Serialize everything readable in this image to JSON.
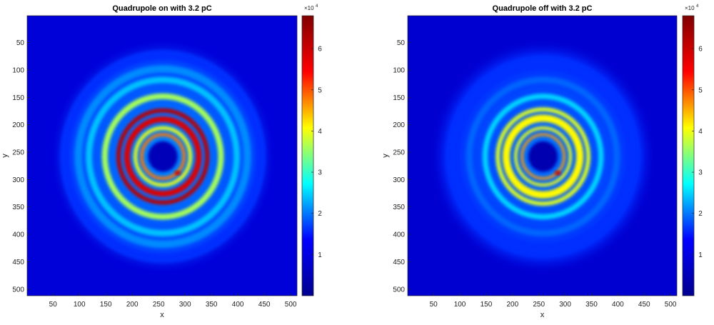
{
  "chart_data": [
    {
      "type": "heatmap",
      "title": "Quadrupole on with 3.2 pC",
      "xlabel": "x",
      "ylabel": "y",
      "xlim": [
        1,
        512
      ],
      "ylim": [
        1,
        512
      ],
      "x_ticks": [
        "50",
        "100",
        "150",
        "200",
        "250",
        "300",
        "350",
        "400",
        "450",
        "500"
      ],
      "y_ticks": [
        "50",
        "100",
        "150",
        "200",
        "250",
        "300",
        "350",
        "400",
        "450",
        "500"
      ],
      "colorbar": {
        "range": [
          0,
          68000
        ],
        "ticks": [
          "1",
          "2",
          "3",
          "4",
          "5",
          "6"
        ],
        "multiplier": "×10",
        "multiplier_exp": "4"
      },
      "colormap": [
        "#00008f",
        "#0000ff",
        "#00ffff",
        "#ffff00",
        "#ff0000",
        "#800000"
      ],
      "background_level": 9000,
      "rings": [
        {
          "radius": 40,
          "width": 6,
          "intensity": 48000
        },
        {
          "radius": 52,
          "width": 7,
          "intensity": 40000
        },
        {
          "radius": 68,
          "width": 11,
          "intensity": 58000
        },
        {
          "radius": 84,
          "width": 8,
          "intensity": 62000
        },
        {
          "radius": 110,
          "width": 11,
          "intensity": 36000
        },
        {
          "radius": 140,
          "width": 12,
          "intensity": 24000
        },
        {
          "radius": 160,
          "width": 14,
          "intensity": 21000
        },
        {
          "radius": 185,
          "width": 18,
          "intensity": 16000
        }
      ],
      "hole_radius": 28,
      "center": [
        258,
        258
      ]
    },
    {
      "type": "heatmap",
      "title": "Quadrupole off with 3.2 pC",
      "xlabel": "x",
      "ylabel": "y",
      "xlim": [
        1,
        512
      ],
      "ylim": [
        1,
        512
      ],
      "x_ticks": [
        "50",
        "100",
        "150",
        "200",
        "250",
        "300",
        "350",
        "400",
        "450",
        "500"
      ],
      "y_ticks": [
        "50",
        "100",
        "150",
        "200",
        "250",
        "300",
        "350",
        "400",
        "450",
        "500"
      ],
      "colorbar": {
        "range": [
          0,
          68000
        ],
        "ticks": [
          "1",
          "2",
          "3",
          "4",
          "5",
          "6"
        ],
        "multiplier": "×10",
        "multiplier_exp": "4"
      },
      "colormap": [
        "#00008f",
        "#0000ff",
        "#00ffff",
        "#ffff00",
        "#ff0000",
        "#800000"
      ],
      "background_level": 8000,
      "rings": [
        {
          "radius": 40,
          "width": 5,
          "intensity": 46000
        },
        {
          "radius": 52,
          "width": 6,
          "intensity": 40000
        },
        {
          "radius": 70,
          "width": 14,
          "intensity": 41000
        },
        {
          "radius": 86,
          "width": 8,
          "intensity": 39000
        },
        {
          "radius": 110,
          "width": 10,
          "intensity": 25000
        },
        {
          "radius": 140,
          "width": 12,
          "intensity": 19000
        },
        {
          "radius": 165,
          "width": 14,
          "intensity": 16000
        }
      ],
      "hole_radius": 28,
      "center": [
        258,
        258
      ]
    }
  ]
}
